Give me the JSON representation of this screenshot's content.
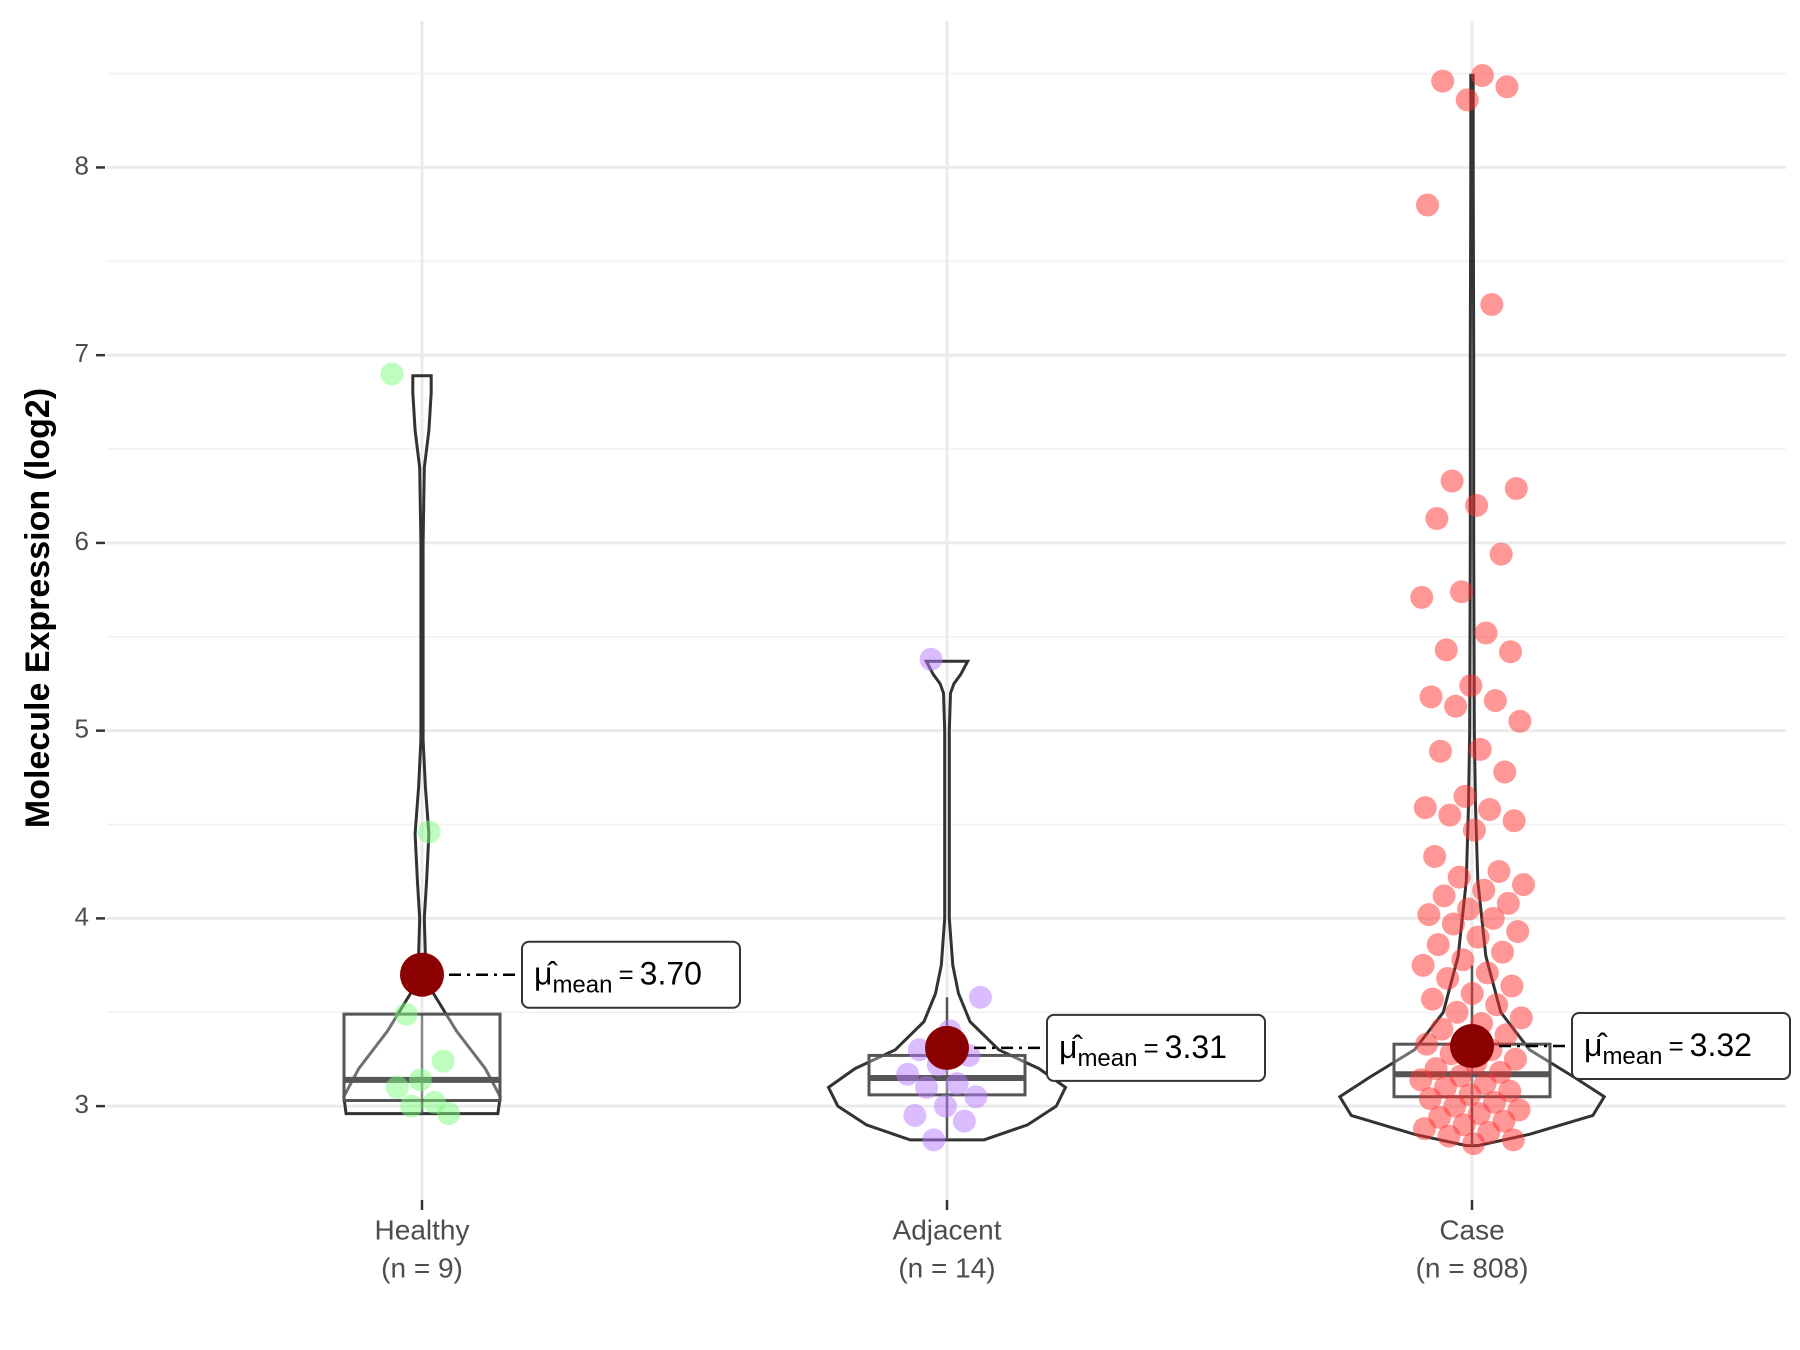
{
  "chart_data": {
    "type": "violin",
    "y_label": "Molecule Expression (log2)",
    "categories": [
      "Healthy",
      "Adjacent",
      "Case"
    ],
    "n_labels": [
      "(n = 9)",
      "(n = 14)",
      "(n = 808)"
    ],
    "ylim": [
      2.5,
      8.78
    ],
    "yticks": [
      3,
      4,
      5,
      6,
      7,
      8
    ],
    "minor_yticks": [
      3.5,
      4.5,
      5.5,
      6.5,
      7.5,
      8.5
    ],
    "grid": true,
    "mean_symbol": "μ̂",
    "mean_subscript": "mean",
    "mean_operator": "=",
    "mean_color": "#8b0000",
    "series": [
      {
        "color": "#7cfc7c",
        "values": [
          6.9,
          4.46,
          3.49,
          3.24,
          3.14,
          3.1,
          3.02,
          3.0,
          2.96
        ],
        "mean": 3.7,
        "mean_label": "3.70",
        "box": {
          "q1": 3.03,
          "median": 3.14,
          "q3": 3.49,
          "whisker": [
            2.96,
            3.49
          ]
        },
        "violin": {
          "y": [
            2.96,
            3.05,
            3.2,
            3.4,
            3.6,
            3.8,
            4.0,
            4.2,
            4.45,
            4.7,
            4.95,
            5.2,
            6.0,
            6.4,
            6.6,
            6.8,
            6.89
          ],
          "density": [
            0.66,
            0.68,
            0.55,
            0.3,
            0.1,
            0.03,
            0.02,
            0.04,
            0.06,
            0.03,
            0.01,
            0.01,
            0.01,
            0.02,
            0.06,
            0.08,
            0.08
          ]
        }
      },
      {
        "color": "#b87cff",
        "values": [
          5.38,
          3.58,
          3.4,
          3.3,
          3.27,
          3.22,
          3.17,
          3.12,
          3.1,
          3.05,
          3.0,
          2.95,
          2.92,
          2.82
        ],
        "mean": 3.31,
        "mean_label": "3.31",
        "box": {
          "q1": 3.06,
          "median": 3.15,
          "q3": 3.27,
          "whisker": [
            2.82,
            3.58
          ]
        },
        "violin": {
          "y": [
            2.82,
            2.9,
            3.0,
            3.1,
            3.2,
            3.3,
            3.45,
            3.6,
            3.75,
            4.0,
            4.5,
            5.0,
            5.2,
            5.25,
            5.3,
            5.37
          ],
          "density": [
            0.32,
            0.7,
            0.95,
            1.03,
            0.8,
            0.45,
            0.2,
            0.1,
            0.05,
            0.02,
            0.02,
            0.02,
            0.03,
            0.06,
            0.12,
            0.18
          ]
        }
      },
      {
        "color": "#ff3030",
        "values": [
          8.49,
          8.46,
          8.43,
          8.36,
          7.8,
          7.27,
          6.33,
          6.29,
          6.2,
          6.13,
          5.94,
          5.74,
          5.71,
          5.52,
          5.43,
          5.42,
          5.24,
          5.18,
          5.16,
          5.13,
          5.05,
          4.9,
          4.89,
          4.78,
          4.65,
          4.59,
          4.58,
          4.55,
          4.52,
          4.47,
          4.33,
          4.25,
          4.22,
          4.18,
          4.15,
          4.12,
          4.08,
          4.05,
          4.02,
          4.0,
          3.97,
          3.93,
          3.9,
          3.86,
          3.82,
          3.78,
          3.75,
          3.71,
          3.68,
          3.64,
          3.6,
          3.57,
          3.54,
          3.5,
          3.47,
          3.44,
          3.41,
          3.38,
          3.35,
          3.33,
          3.3,
          3.28,
          3.25,
          3.23,
          3.2,
          3.18,
          3.16,
          3.14,
          3.12,
          3.1,
          3.08,
          3.06,
          3.04,
          3.02,
          3.0,
          2.98,
          2.96,
          2.94,
          2.92,
          2.9,
          2.88,
          2.86,
          2.84,
          2.82,
          2.8
        ],
        "mean": 3.32,
        "mean_label": "3.32",
        "box": {
          "q1": 3.05,
          "median": 3.17,
          "q3": 3.33,
          "whisker": [
            2.79,
            3.75
          ]
        },
        "violin": {
          "y": [
            2.79,
            2.85,
            2.95,
            3.05,
            3.15,
            3.3,
            3.5,
            3.8,
            4.2,
            4.6,
            5.0,
            6.0,
            7.0,
            8.0,
            8.49
          ],
          "density": [
            0.05,
            0.5,
            1.05,
            1.15,
            0.9,
            0.5,
            0.25,
            0.12,
            0.05,
            0.03,
            0.02,
            0.015,
            0.015,
            0.01,
            0.01
          ]
        }
      }
    ]
  }
}
